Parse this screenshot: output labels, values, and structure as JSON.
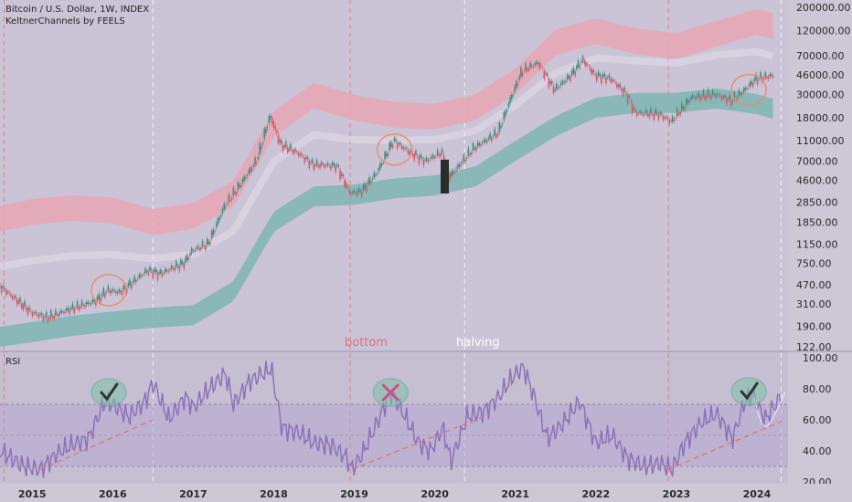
{
  "header": {
    "title": "Bitcoin / U.S. Dollar, 1W, INDEX",
    "indicator": "KeltnerChannels by FEELS",
    "rsi_label": "RSI"
  },
  "annotations": {
    "bottom": "bottom",
    "halving": "halving"
  },
  "colors": {
    "background": "#c9c2d4",
    "upper_band": "#e8a6b4",
    "lower_band": "#7fb5b3",
    "up_candle": "#3f8f7f",
    "down_candle": "#d65a6a",
    "rsi_line": "#8b72b8",
    "rsi_fill": "#b6a8cf",
    "marker_circle": "#e8916a",
    "check_circle": "#5fa88a",
    "cross": "#d44b8c",
    "trendline": "#e07070"
  },
  "chart_data": [
    {
      "type": "line",
      "name_shown": "Bitcoin / U.S. Dollar, 1W, INDEX",
      "scale": "log",
      "x": [
        "2015",
        "2016",
        "2017",
        "2018",
        "2019",
        "2020",
        "2021",
        "2022",
        "2023",
        "2024"
      ],
      "ylim": [
        122,
        200000
      ],
      "y_ticks": [
        "200000.00",
        "120000.00",
        "70000.00",
        "46000.00",
        "30000.00",
        "18000.00",
        "11000.00",
        "7000.00",
        "4600.00",
        "2850.00",
        "1850.00",
        "1150.00",
        "750.00",
        "470.00",
        "310.00",
        "190.00",
        "122.00"
      ],
      "price": [
        [
          2014.6,
          470
        ],
        [
          2015.0,
          260
        ],
        [
          2015.2,
          230
        ],
        [
          2015.5,
          280
        ],
        [
          2015.8,
          330
        ],
        [
          2015.95,
          420
        ],
        [
          2016.1,
          400
        ],
        [
          2016.45,
          650
        ],
        [
          2016.6,
          600
        ],
        [
          2016.9,
          760
        ],
        [
          2017.0,
          990
        ],
        [
          2017.2,
          1150
        ],
        [
          2017.4,
          2600
        ],
        [
          2017.6,
          4200
        ],
        [
          2017.8,
          7000
        ],
        [
          2017.97,
          19000
        ],
        [
          2018.1,
          10000
        ],
        [
          2018.3,
          8500
        ],
        [
          2018.5,
          6500
        ],
        [
          2018.8,
          6300
        ],
        [
          2018.96,
          3500
        ],
        [
          2019.1,
          3600
        ],
        [
          2019.3,
          5500
        ],
        [
          2019.5,
          11000
        ],
        [
          2019.7,
          8500
        ],
        [
          2019.9,
          7000
        ],
        [
          2020.1,
          8500
        ],
        [
          2020.2,
          5000
        ],
        [
          2020.5,
          9300
        ],
        [
          2020.8,
          13000
        ],
        [
          2020.97,
          29000
        ],
        [
          2021.1,
          50000
        ],
        [
          2021.3,
          60000
        ],
        [
          2021.5,
          33000
        ],
        [
          2021.7,
          45000
        ],
        [
          2021.85,
          64000
        ],
        [
          2022.0,
          46000
        ],
        [
          2022.2,
          42000
        ],
        [
          2022.4,
          30000
        ],
        [
          2022.5,
          20000
        ],
        [
          2022.8,
          19500
        ],
        [
          2022.95,
          16500
        ],
        [
          2023.2,
          28000
        ],
        [
          2023.5,
          30000
        ],
        [
          2023.7,
          26000
        ],
        [
          2023.9,
          35000
        ],
        [
          2024.0,
          42000
        ],
        [
          2024.2,
          45000
        ]
      ],
      "keltner_upper": [
        [
          2014.6,
          1500
        ],
        [
          2015.0,
          1750
        ],
        [
          2015.5,
          1900
        ],
        [
          2016.0,
          1800
        ],
        [
          2016.5,
          1400
        ],
        [
          2017.0,
          1600
        ],
        [
          2017.5,
          2600
        ],
        [
          2018.0,
          12000
        ],
        [
          2018.5,
          22000
        ],
        [
          2019.0,
          17000
        ],
        [
          2019.5,
          14500
        ],
        [
          2020.0,
          14000
        ],
        [
          2020.5,
          17000
        ],
        [
          2021.0,
          30000
        ],
        [
          2021.5,
          70000
        ],
        [
          2022.0,
          90000
        ],
        [
          2022.5,
          72000
        ],
        [
          2023.0,
          65000
        ],
        [
          2023.5,
          85000
        ],
        [
          2024.0,
          110000
        ],
        [
          2024.2,
          100000
        ]
      ],
      "keltner_lower": [
        [
          2014.6,
          122
        ],
        [
          2015.0,
          135
        ],
        [
          2015.5,
          155
        ],
        [
          2016.0,
          170
        ],
        [
          2016.5,
          185
        ],
        [
          2017.0,
          195
        ],
        [
          2017.5,
          330
        ],
        [
          2018.0,
          1500
        ],
        [
          2018.5,
          2600
        ],
        [
          2019.0,
          2700
        ],
        [
          2019.5,
          3100
        ],
        [
          2020.0,
          3300
        ],
        [
          2020.5,
          4000
        ],
        [
          2021.0,
          7000
        ],
        [
          2021.5,
          12000
        ],
        [
          2022.0,
          18000
        ],
        [
          2022.5,
          20000
        ],
        [
          2023.0,
          20000
        ],
        [
          2023.5,
          22000
        ],
        [
          2024.0,
          19500
        ],
        [
          2024.2,
          17500
        ]
      ]
    },
    {
      "type": "line",
      "name_shown": "RSI",
      "x": [
        "2015",
        "2016",
        "2017",
        "2018",
        "2019",
        "2020",
        "2021",
        "2022",
        "2023",
        "2024"
      ],
      "ylim": [
        20,
        100
      ],
      "y_ticks": [
        "100.00",
        "80.00",
        "60.00",
        "40.00",
        "20.00"
      ],
      "rsi": [
        [
          2014.6,
          40
        ],
        [
          2014.9,
          30
        ],
        [
          2015.1,
          28
        ],
        [
          2015.3,
          38
        ],
        [
          2015.5,
          44
        ],
        [
          2015.7,
          48
        ],
        [
          2015.9,
          72
        ],
        [
          2016.0,
          70
        ],
        [
          2016.2,
          62
        ],
        [
          2016.4,
          72
        ],
        [
          2016.5,
          84
        ],
        [
          2016.7,
          60
        ],
        [
          2016.9,
          75
        ],
        [
          2017.0,
          68
        ],
        [
          2017.2,
          80
        ],
        [
          2017.4,
          90
        ],
        [
          2017.5,
          70
        ],
        [
          2017.7,
          85
        ],
        [
          2017.97,
          93
        ],
        [
          2018.1,
          55
        ],
        [
          2018.3,
          52
        ],
        [
          2018.5,
          45
        ],
        [
          2018.7,
          44
        ],
        [
          2018.9,
          36
        ],
        [
          2018.97,
          28
        ],
        [
          2019.1,
          38
        ],
        [
          2019.3,
          60
        ],
        [
          2019.45,
          78
        ],
        [
          2019.6,
          65
        ],
        [
          2019.8,
          45
        ],
        [
          2019.95,
          40
        ],
        [
          2020.1,
          55
        ],
        [
          2020.2,
          33
        ],
        [
          2020.4,
          62
        ],
        [
          2020.6,
          65
        ],
        [
          2020.8,
          75
        ],
        [
          2020.97,
          88
        ],
        [
          2021.1,
          94
        ],
        [
          2021.2,
          80
        ],
        [
          2021.4,
          48
        ],
        [
          2021.6,
          58
        ],
        [
          2021.8,
          72
        ],
        [
          2022.0,
          45
        ],
        [
          2022.2,
          50
        ],
        [
          2022.4,
          35
        ],
        [
          2022.6,
          30
        ],
        [
          2022.8,
          32
        ],
        [
          2022.95,
          28
        ],
        [
          2023.1,
          45
        ],
        [
          2023.3,
          58
        ],
        [
          2023.5,
          64
        ],
        [
          2023.7,
          48
        ],
        [
          2023.85,
          72
        ],
        [
          2023.95,
          76
        ],
        [
          2024.1,
          60
        ],
        [
          2024.3,
          75
        ]
      ]
    }
  ]
}
